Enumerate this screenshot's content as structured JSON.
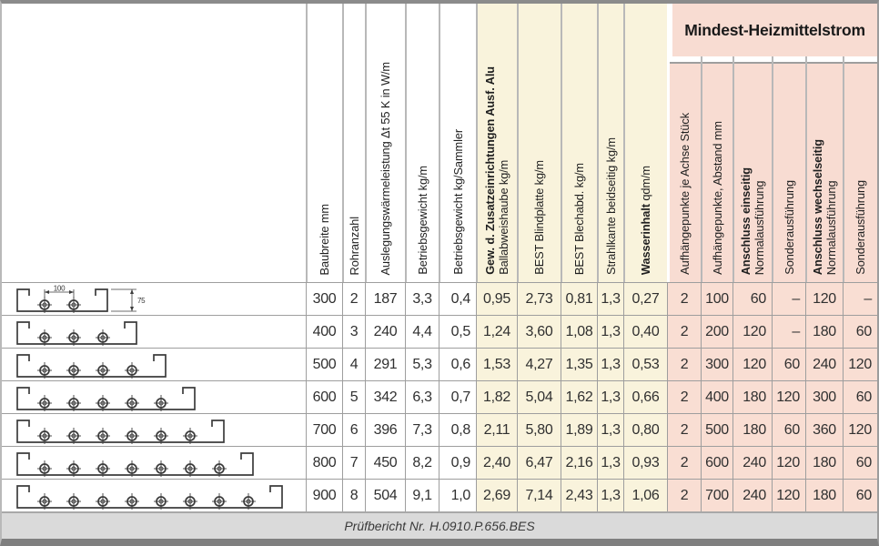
{
  "table": {
    "group_header": "Mindest-Heizmittelstrom",
    "columns": [
      {
        "id": "baubreite",
        "line1": "Baubreite mm"
      },
      {
        "id": "rohranzahl",
        "line1": "Rohranzahl"
      },
      {
        "id": "auslegungswaermeleistung",
        "line1": "Auslegungswärmeleistung Δt 55 K in W/m"
      },
      {
        "id": "betriebsgewicht-kg-m",
        "line1": "Betriebsgewicht kg/m"
      },
      {
        "id": "betriebsgewicht-kg-sammler",
        "line1": "Betriebsgewicht kg/Sammler"
      },
      {
        "id": "gew-zusatzeinrichtungen",
        "bold": "Gew. d. Zusatzeinrichtungen Ausf. Alu",
        "line1": "Ballabweishaube kg/m"
      },
      {
        "id": "best-blindplatte",
        "line1": "BEST Blindplatte kg/m"
      },
      {
        "id": "best-blechabd",
        "line1": "BEST Blechabd. kg/m"
      },
      {
        "id": "strahlkante",
        "line1": "Strahlkante beidseitig kg/m"
      },
      {
        "id": "wasserinhalt",
        "bold_inline": "Wasserinhalt",
        "line1": " qdm/m"
      },
      {
        "id": "aufhaengepunkte-stueck",
        "line1": "Aufhängepunkte je Achse Stück"
      },
      {
        "id": "aufhaengepunkte-abstand",
        "line1": "Aufhängepunkte, Abstand mm"
      },
      {
        "id": "anschluss-einseitig",
        "bold": "Anschluss einseitig",
        "line1": "Normalausführung"
      },
      {
        "id": "sonderausfuehrung-1",
        "line1": "Sonderausführung"
      },
      {
        "id": "anschluss-wechselseitig",
        "bold": "Anschluss wechselseitig",
        "line1": "Normalausführung"
      },
      {
        "id": "sonderausfuehrung-2",
        "line1": "Sonderausführung"
      }
    ],
    "diagram_dimensions": {
      "pipe_spacing_mm": "100",
      "height_mm": "75"
    },
    "rows": [
      {
        "pipes": 2,
        "values": [
          "300",
          "2",
          "187",
          "3,3",
          "0,4",
          "0,95",
          "2,73",
          "0,81",
          "1,3",
          "0,27",
          "2",
          "100",
          "60",
          "–",
          "120",
          "–"
        ]
      },
      {
        "pipes": 3,
        "values": [
          "400",
          "3",
          "240",
          "4,4",
          "0,5",
          "1,24",
          "3,60",
          "1,08",
          "1,3",
          "0,40",
          "2",
          "200",
          "120",
          "–",
          "180",
          "60"
        ]
      },
      {
        "pipes": 4,
        "values": [
          "500",
          "4",
          "291",
          "5,3",
          "0,6",
          "1,53",
          "4,27",
          "1,35",
          "1,3",
          "0,53",
          "2",
          "300",
          "120",
          "60",
          "240",
          "120"
        ]
      },
      {
        "pipes": 5,
        "values": [
          "600",
          "5",
          "342",
          "6,3",
          "0,7",
          "1,82",
          "5,04",
          "1,62",
          "1,3",
          "0,66",
          "2",
          "400",
          "180",
          "120",
          "300",
          "60"
        ]
      },
      {
        "pipes": 6,
        "values": [
          "700",
          "6",
          "396",
          "7,3",
          "0,8",
          "2,11",
          "5,80",
          "1,89",
          "1,3",
          "0,80",
          "2",
          "500",
          "180",
          "60",
          "360",
          "120"
        ]
      },
      {
        "pipes": 7,
        "values": [
          "800",
          "7",
          "450",
          "8,2",
          "0,9",
          "2,40",
          "6,47",
          "2,16",
          "1,3",
          "0,93",
          "2",
          "600",
          "240",
          "120",
          "180",
          "60"
        ]
      },
      {
        "pipes": 8,
        "values": [
          "900",
          "8",
          "504",
          "9,1",
          "1,0",
          "2,69",
          "7,14",
          "2,43",
          "1,3",
          "1,06",
          "2",
          "700",
          "240",
          "120",
          "180",
          "60"
        ]
      }
    ],
    "footer": "Prüfbericht Nr. H.0910.P.656.BES"
  },
  "colors": {
    "yellow_group": "#f9f3dc",
    "pink_group": "#f9ded3",
    "band_pink": "#f8dcd2",
    "gridline": "#9e9e9e",
    "footer_bg": "#dadada"
  }
}
